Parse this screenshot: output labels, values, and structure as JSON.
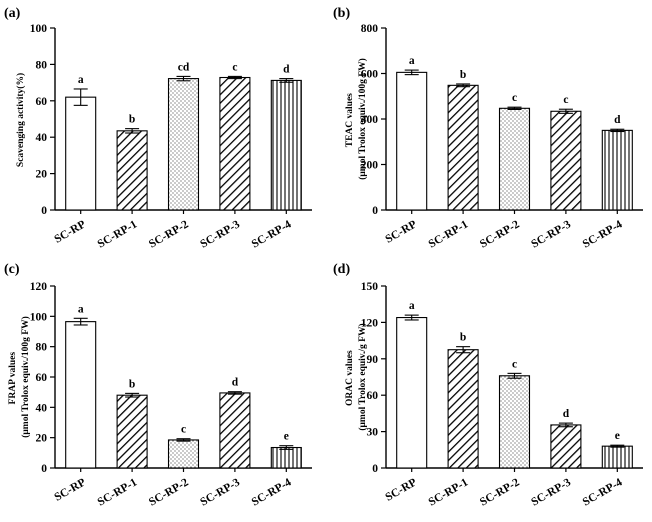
{
  "chart_data": [
    {
      "type": "bar",
      "panel_label": "(a)",
      "ylabel_lines": [
        "Scavenging activity(%)"
      ],
      "ylim": [
        0,
        100
      ],
      "yticks": [
        0,
        20,
        40,
        60,
        80,
        100
      ],
      "categories": [
        "SC-RP",
        "SC-RP-1",
        "SC-RP-2",
        "SC-RP-3",
        "SC-RP-4"
      ],
      "values": [
        62,
        43.5,
        72.2,
        72.8,
        71.2
      ],
      "errors": [
        4.5,
        1.2,
        1.2,
        0.6,
        1.0
      ],
      "letters": [
        "a",
        "b",
        "cd",
        "c",
        "d"
      ],
      "patterns": [
        "none",
        "diag",
        "dots",
        "diag",
        "vert"
      ]
    },
    {
      "type": "bar",
      "panel_label": "(b)",
      "ylabel_lines": [
        "TEAC values",
        "(μmol Trolox equiv./100g FW)"
      ],
      "ylim": [
        0,
        800
      ],
      "yticks": [
        0,
        200,
        400,
        600,
        800
      ],
      "categories": [
        "SC-RP",
        "SC-RP-1",
        "SC-RP-2",
        "SC-RP-3",
        "SC-RP-4"
      ],
      "values": [
        605,
        548,
        447,
        434,
        350
      ],
      "errors": [
        10,
        6,
        5,
        9,
        5
      ],
      "letters": [
        "a",
        "b",
        "c",
        "c",
        "d"
      ],
      "patterns": [
        "none",
        "diag",
        "dots",
        "diag",
        "vert"
      ]
    },
    {
      "type": "bar",
      "panel_label": "(c)",
      "ylabel_lines": [
        "FRAP  values",
        "(μmol Trolox equiv./100g FW)"
      ],
      "ylim": [
        0,
        120
      ],
      "yticks": [
        0,
        20,
        40,
        60,
        80,
        100,
        120
      ],
      "categories": [
        "SC-RP",
        "SC-RP-1",
        "SC-RP-2",
        "SC-RP-3",
        "SC-RP-4"
      ],
      "values": [
        96.5,
        48,
        18.5,
        49.5,
        13.5
      ],
      "errors": [
        2.2,
        1.2,
        0.8,
        0.8,
        1.2
      ],
      "letters": [
        "a",
        "b",
        "c",
        "d",
        "e"
      ],
      "patterns": [
        "none",
        "diag",
        "dots",
        "diag",
        "vert"
      ]
    },
    {
      "type": "bar",
      "panel_label": "(d)",
      "ylabel_lines": [
        "ORAC values",
        "(μmol Trolox equiv./g FW)"
      ],
      "ylim": [
        0,
        150
      ],
      "yticks": [
        0,
        30,
        60,
        90,
        120,
        150
      ],
      "categories": [
        "SC-RP",
        "SC-RP-1",
        "SC-RP-2",
        "SC-RP-3",
        "SC-RP-4"
      ],
      "values": [
        124,
        97.5,
        76,
        35.5,
        18
      ],
      "errors": [
        2.0,
        2.5,
        2.0,
        1.5,
        0.8
      ],
      "letters": [
        "a",
        "b",
        "c",
        "d",
        "e"
      ],
      "patterns": [
        "none",
        "diag",
        "dots",
        "diag",
        "vert"
      ]
    }
  ]
}
